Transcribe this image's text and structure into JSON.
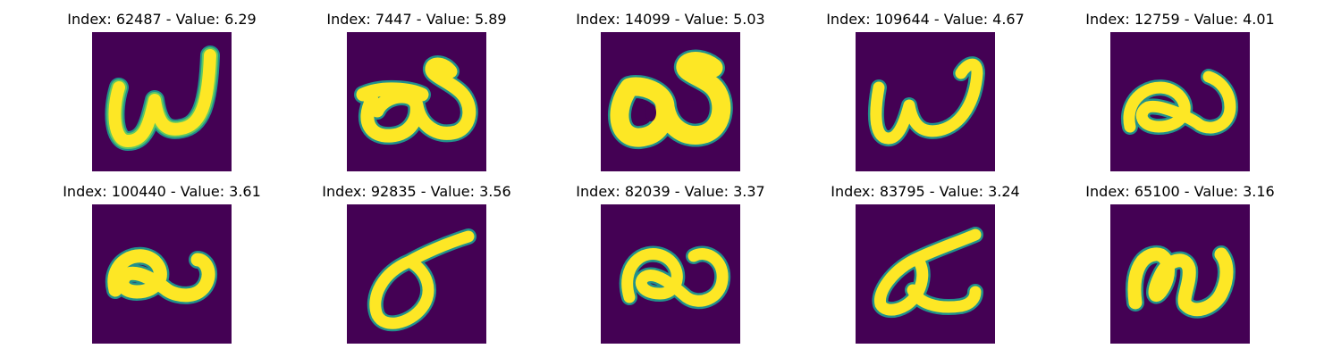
{
  "background_color": "#440154",
  "ink_colors": [
    "#fde725",
    "#5ec962",
    "#21918c"
  ],
  "tiles": [
    {
      "title": "Index: 62487 - Value: 6.29",
      "glyph": "letter-like-w"
    },
    {
      "title": "Index: 7447 - Value: 5.89",
      "glyph": "double-loop"
    },
    {
      "title": "Index: 14099 - Value: 5.03",
      "glyph": "bold-double-loop"
    },
    {
      "title": "Index: 109644 - Value: 4.67",
      "glyph": "letter-like-w"
    },
    {
      "title": "Index: 12759 - Value: 4.01",
      "glyph": "loop-with-tail"
    },
    {
      "title": "Index: 100440 - Value: 3.61",
      "glyph": "loop-with-tail"
    },
    {
      "title": "Index: 92835 - Value: 3.56",
      "glyph": "sigma-like"
    },
    {
      "title": "Index: 82039 - Value: 3.37",
      "glyph": "loop-with-tail"
    },
    {
      "title": "Index: 83795 - Value: 3.24",
      "glyph": "triangle-hook"
    },
    {
      "title": "Index: 65100 - Value: 3.16",
      "glyph": "loop-w"
    }
  ]
}
